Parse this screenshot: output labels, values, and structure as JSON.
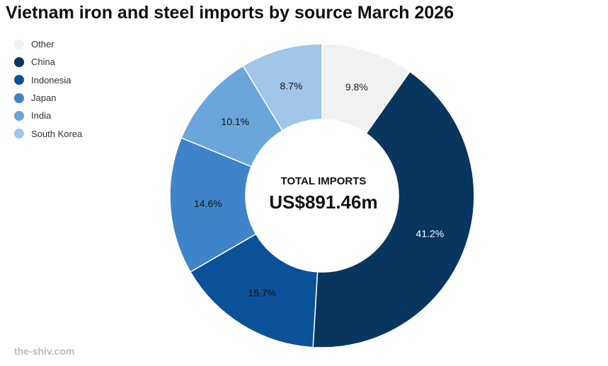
{
  "title": "Vietnam iron and steel imports by source March 2026",
  "source": "the-shiv.com",
  "chart_data": {
    "type": "pie",
    "title": "Vietnam iron and steel imports by source March 2026",
    "categories": [
      "Other",
      "China",
      "Indonesia",
      "Japan",
      "India",
      "South Korea"
    ],
    "values": [
      9.8,
      41.2,
      15.7,
      14.6,
      10.1,
      8.7
    ],
    "labels": [
      "9.8%",
      "41.2%",
      "15.7%",
      "14.6%",
      "10.1%",
      "8.7%"
    ],
    "colors": [
      "#f1f1f1",
      "#08365f",
      "#0b5197",
      "#3f84c8",
      "#6aa6dc",
      "#a0c6e9"
    ],
    "label_colors": [
      "#222",
      "#fff",
      "#111",
      "#111",
      "#111",
      "#111"
    ],
    "legend_position": "top-left",
    "center_label": "TOTAL IMPORTS",
    "center_value": "US$891.46m"
  }
}
